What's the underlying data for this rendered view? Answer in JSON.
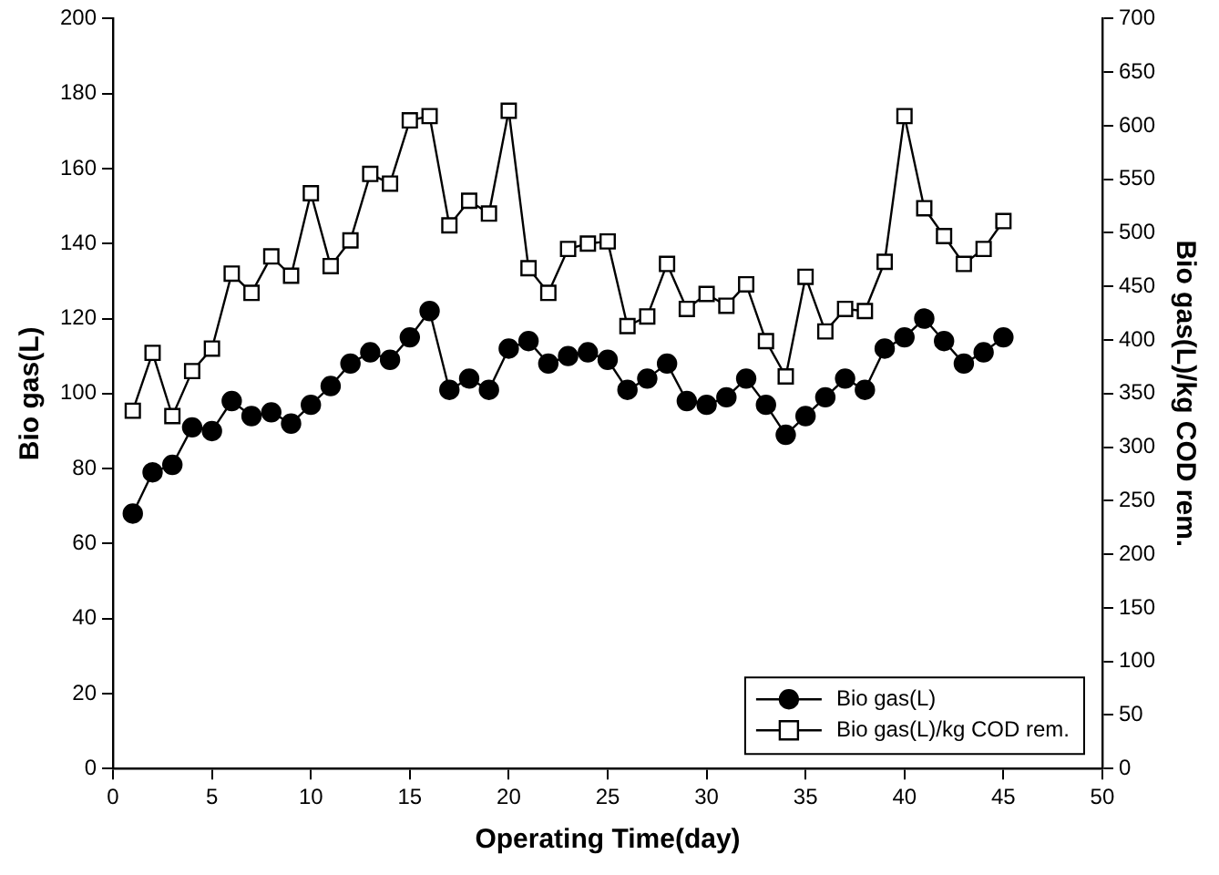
{
  "chart_data": {
    "type": "line",
    "xlabel": "Operating Time(day)",
    "ylabel": "Bio gas(L)",
    "y2label": "Bio gas(L)/kg COD rem.",
    "x": [
      1,
      2,
      3,
      4,
      5,
      6,
      7,
      8,
      9,
      10,
      11,
      12,
      13,
      14,
      15,
      16,
      17,
      18,
      19,
      20,
      21,
      22,
      23,
      24,
      25,
      26,
      27,
      28,
      29,
      30,
      31,
      32,
      33,
      34,
      35,
      36,
      37,
      38,
      39,
      40,
      41,
      42,
      43,
      44,
      45
    ],
    "series": [
      {
        "name": "Bio gas(L)",
        "color": "#000000",
        "marker": "circle",
        "values": [
          68,
          79,
          81,
          91,
          90,
          98,
          94,
          95,
          92,
          97,
          102,
          108,
          111,
          109,
          115,
          122,
          101,
          104,
          101,
          112,
          114,
          108,
          110,
          111,
          109,
          101,
          104,
          108,
          98,
          97,
          99,
          104,
          97,
          89,
          94,
          99,
          104,
          101,
          112,
          115,
          120,
          114,
          108,
          111,
          115
        ]
      },
      {
        "name": "Bio gas(L)/kg COD rem.",
        "color": "#000000",
        "marker": "square",
        "axis": "y2",
        "values": [
          334,
          388,
          329,
          371,
          392,
          462,
          444,
          478,
          460,
          537,
          469,
          493,
          555,
          546,
          605,
          609,
          507,
          530,
          518,
          614,
          467,
          444,
          485,
          490,
          492,
          413,
          422,
          471,
          429,
          443,
          432,
          452,
          399,
          366,
          459,
          408,
          429,
          427,
          473,
          609,
          523,
          497,
          471,
          485,
          511
        ]
      }
    ],
    "xlim": [
      0,
      50
    ],
    "xticks": [
      0,
      5,
      10,
      15,
      20,
      25,
      30,
      35,
      40,
      45,
      50
    ],
    "ylim": [
      0,
      200
    ],
    "yticks": [
      0,
      20,
      40,
      60,
      80,
      100,
      120,
      140,
      160,
      180,
      200
    ],
    "y2lim": [
      0,
      700
    ],
    "y2ticks": [
      0,
      50,
      100,
      150,
      200,
      250,
      300,
      350,
      400,
      450,
      500,
      550,
      600,
      650,
      700
    ],
    "legend": "bottom right",
    "grid": false
  }
}
